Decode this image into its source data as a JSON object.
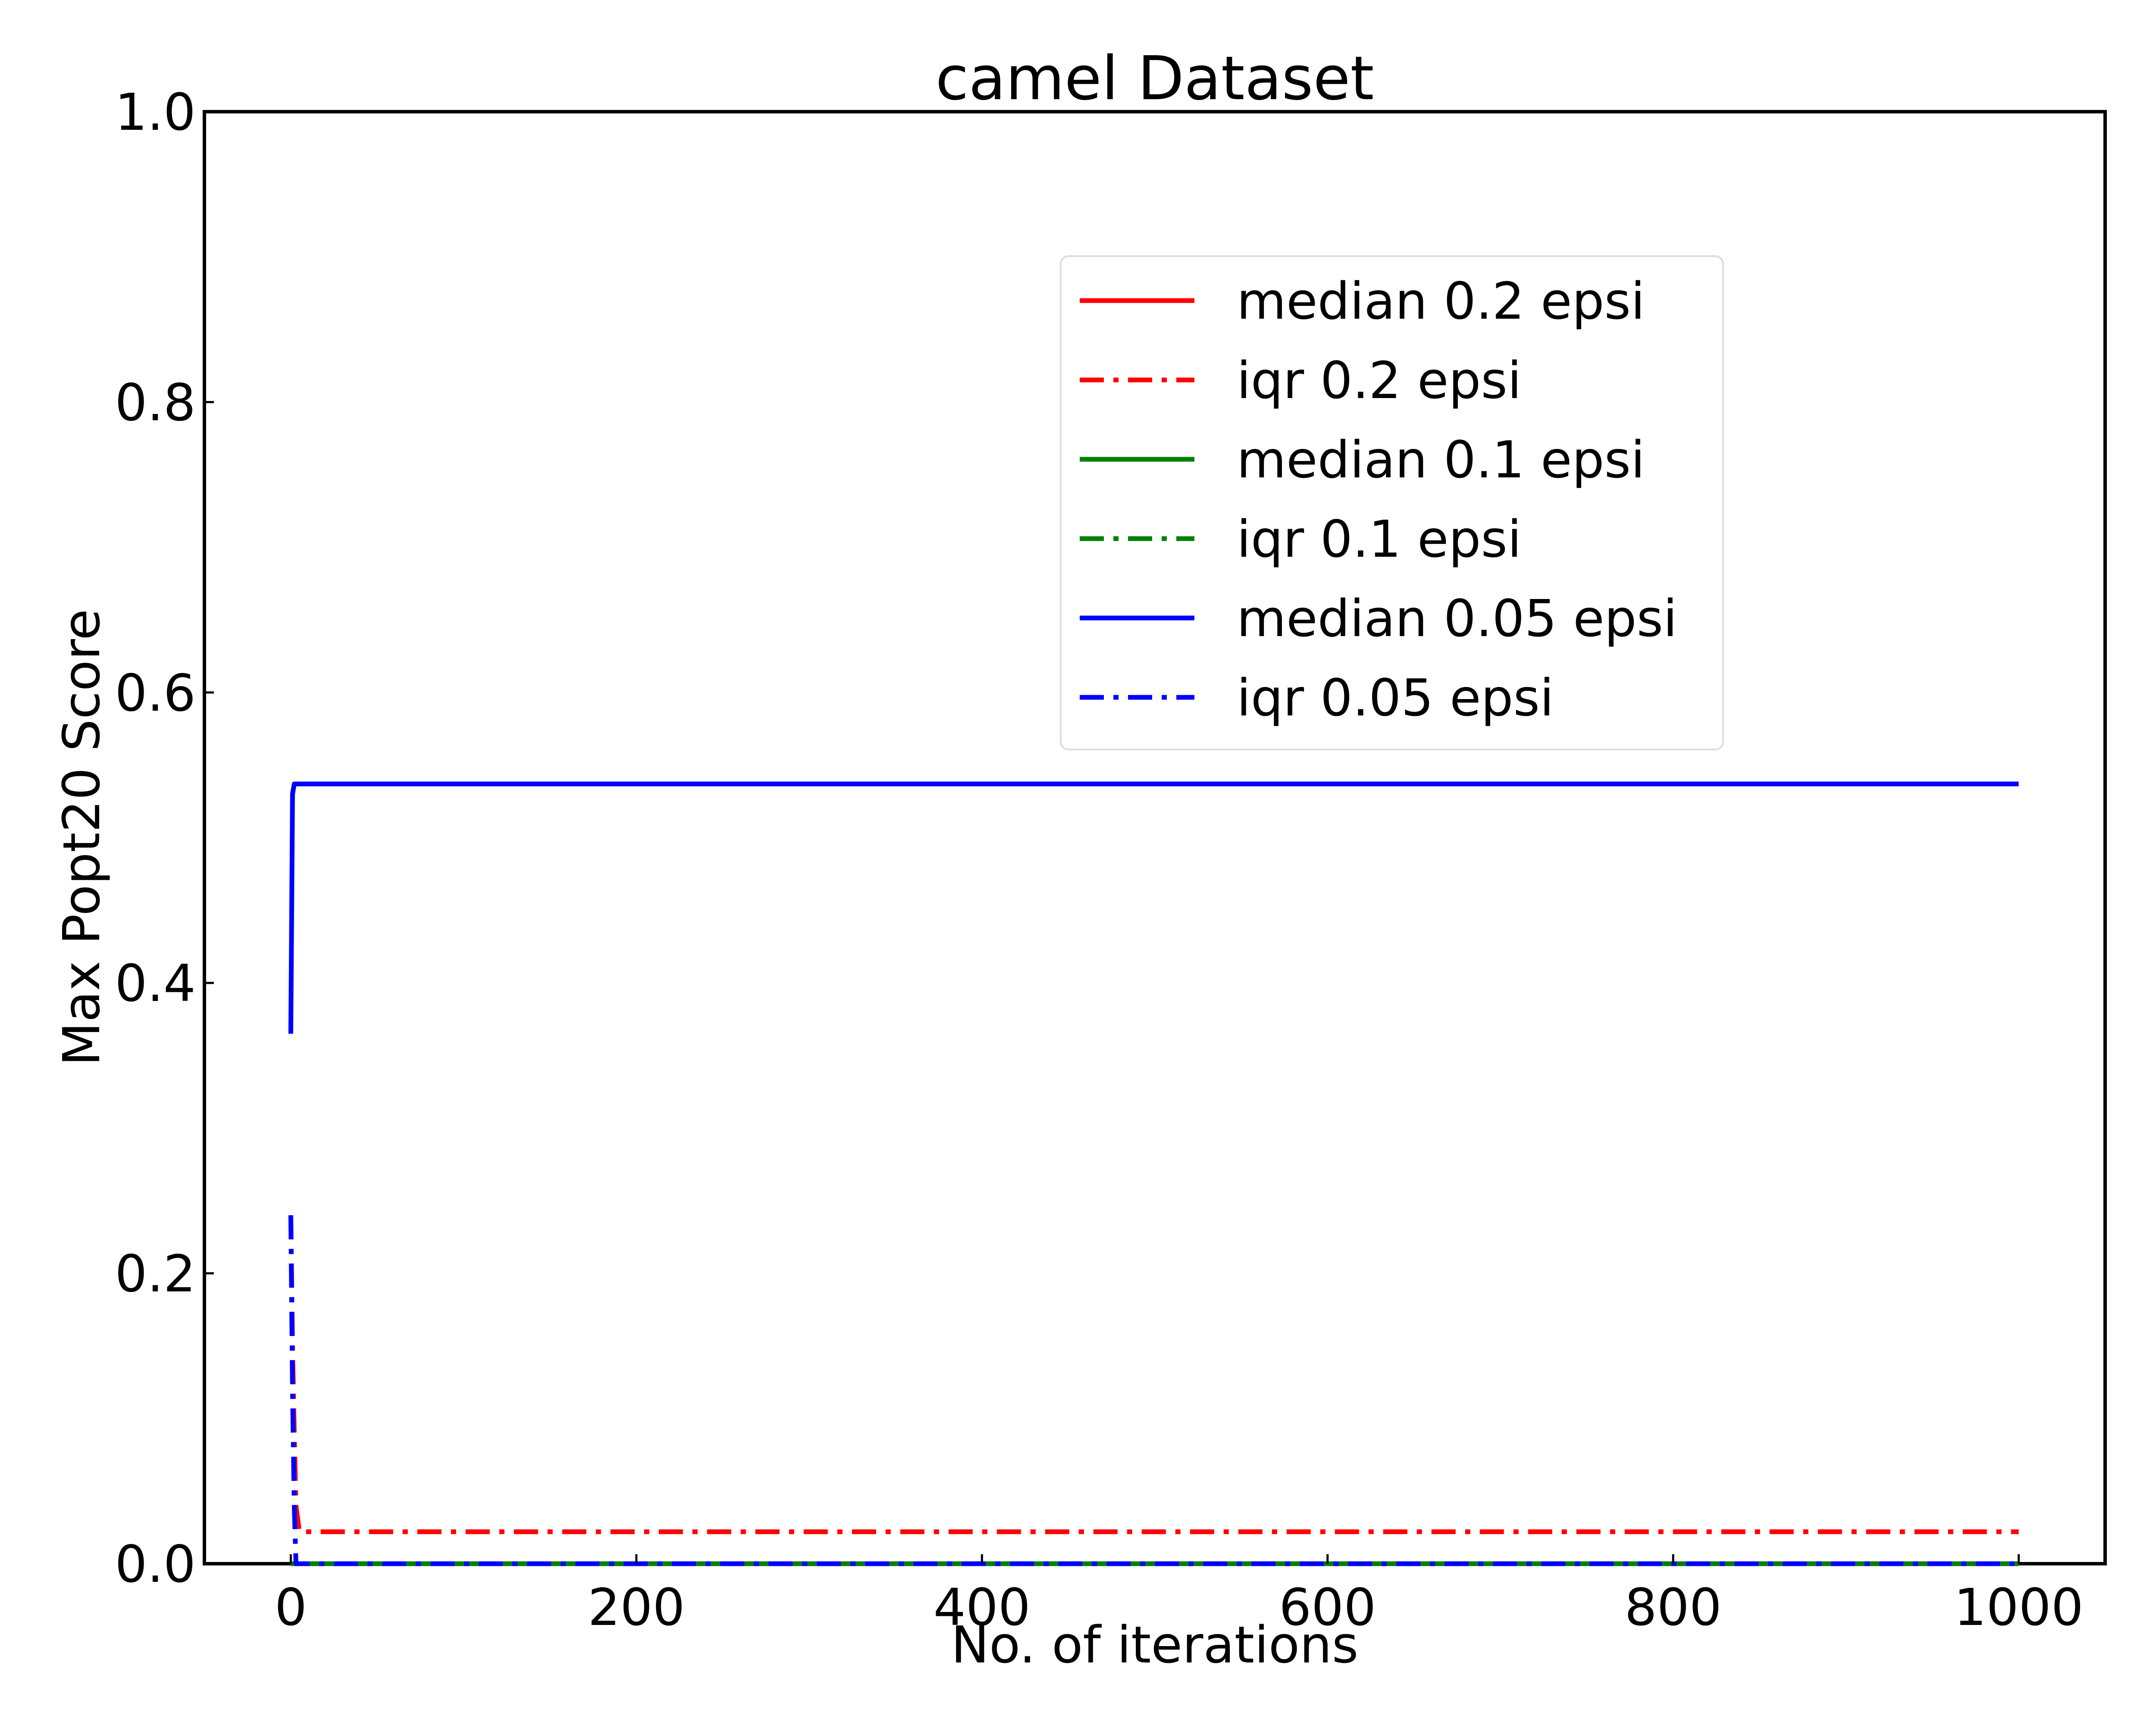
{
  "chart_data": {
    "type": "line",
    "title": "camel Dataset",
    "xlabel": "No. of iterations",
    "ylabel": "Max Popt20 Score",
    "xlim": [
      -50,
      1050
    ],
    "ylim": [
      0.0,
      1.0
    ],
    "x_ticks": [
      0,
      200,
      400,
      600,
      800,
      1000
    ],
    "y_ticks": [
      0.0,
      0.2,
      0.4,
      0.6,
      0.8,
      1.0
    ],
    "x_tick_labels": [
      "0",
      "200",
      "400",
      "600",
      "800",
      "1000"
    ],
    "y_tick_labels": [
      "0.0",
      "0.2",
      "0.4",
      "0.6",
      "0.8",
      "1.0"
    ],
    "grid": false,
    "legend_position": "upper-right",
    "series": [
      {
        "name": "median 0.2 epsi",
        "color": "#ff0000",
        "style": "solid",
        "x": [
          0,
          1000
        ],
        "y": [
          0.0,
          0.0
        ]
      },
      {
        "name": "iqr 0.2 epsi",
        "color": "#ff0000",
        "style": "dashdot",
        "x": [
          0,
          1,
          2,
          3,
          5,
          1000
        ],
        "y": [
          0.24,
          0.15,
          0.09,
          0.04,
          0.022,
          0.022
        ]
      },
      {
        "name": "median 0.1 epsi",
        "color": "#008000",
        "style": "solid",
        "x": [
          0,
          1000
        ],
        "y": [
          0.0,
          0.0
        ]
      },
      {
        "name": "iqr 0.1 epsi",
        "color": "#008000",
        "style": "dashdot",
        "x": [
          0,
          1000
        ],
        "y": [
          0.0,
          0.0
        ]
      },
      {
        "name": "median 0.05 epsi",
        "color": "#0000ff",
        "style": "solid",
        "x": [
          0,
          1,
          2,
          3,
          1000
        ],
        "y": [
          0.365,
          0.53,
          0.537,
          0.537,
          0.537
        ]
      },
      {
        "name": "iqr 0.05 epsi",
        "color": "#0000ff",
        "style": "dashdot",
        "x": [
          0,
          1,
          2,
          3,
          1000
        ],
        "y": [
          0.24,
          0.12,
          0.04,
          0.0,
          0.0
        ]
      }
    ]
  }
}
